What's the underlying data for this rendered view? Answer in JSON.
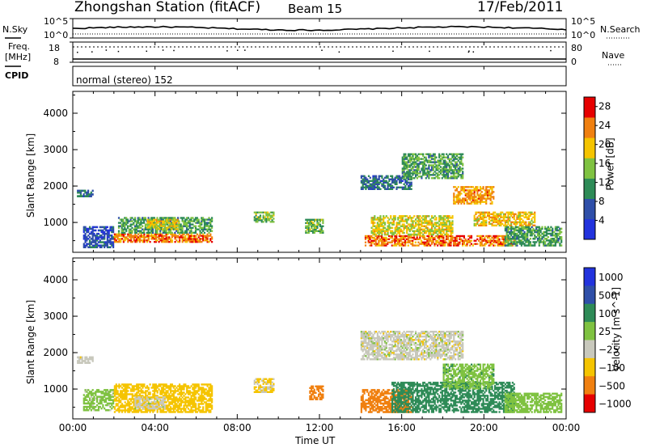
{
  "header": {
    "station": "Zhongshan Station (fitACF)",
    "beam": "Beam 15",
    "date": "17/Feb/2011"
  },
  "status_panels": {
    "nsky_label": "N.Sky",
    "nsky_ticks": [
      "10^5",
      "10^0"
    ],
    "nsearch_label": "N.Search",
    "nsearch_ticks": [
      "10^5",
      "10^0"
    ],
    "freq_label": "Freq.",
    "freq_unit": "[MHz]",
    "freq_ticks": [
      "18",
      "8"
    ],
    "nave_label": "Nave",
    "nave_ticks": [
      "80",
      "0"
    ],
    "cpid_label": "CPID",
    "cpid_text": "normal (stereo) 152"
  },
  "chart_data": [
    {
      "type": "heatmap",
      "panel": "power",
      "title": "",
      "xlabel": "Time UT",
      "ylabel": "Slant Range [km]",
      "x_ticks": [
        "00:00",
        "04:00",
        "08:00",
        "12:00",
        "16:00",
        "20:00",
        "00:00"
      ],
      "y_ticks": [
        1000,
        2000,
        3000,
        4000
      ],
      "xlim_hours": [
        0,
        24
      ],
      "ylim": [
        180,
        4600
      ],
      "colorbar": {
        "label": "Power [dB]",
        "ticks": [
          4,
          8,
          12,
          16,
          20,
          24,
          28
        ],
        "range": [
          0,
          30
        ],
        "colors": [
          "#2233dd",
          "#2f4fa8",
          "#2e8b57",
          "#7fc241",
          "#f5c400",
          "#f08010",
          "#e60000"
        ]
      },
      "regions": [
        {
          "t0": 0.2,
          "t1": 1.0,
          "r0": 1700,
          "r1": 1900,
          "value": 8
        },
        {
          "t0": 0.5,
          "t1": 2.0,
          "r0": 300,
          "r1": 900,
          "value": 6
        },
        {
          "t0": 2.0,
          "t1": 6.8,
          "r0": 450,
          "r1": 700,
          "value": 24
        },
        {
          "t0": 2.2,
          "t1": 6.8,
          "r0": 700,
          "r1": 1150,
          "value": 12
        },
        {
          "t0": 3.6,
          "t1": 5.2,
          "r0": 800,
          "r1": 1100,
          "value": 18
        },
        {
          "t0": 8.8,
          "t1": 9.8,
          "r0": 1000,
          "r1": 1300,
          "value": 14
        },
        {
          "t0": 11.3,
          "t1": 12.2,
          "r0": 700,
          "r1": 1100,
          "value": 14
        },
        {
          "t0": 14.2,
          "t1": 21.5,
          "r0": 350,
          "r1": 650,
          "value": 24
        },
        {
          "t0": 14.5,
          "t1": 18.5,
          "r0": 650,
          "r1": 1200,
          "value": 18
        },
        {
          "t0": 14.0,
          "t1": 16.5,
          "r0": 1900,
          "r1": 2300,
          "value": 8
        },
        {
          "t0": 16.0,
          "t1": 19.0,
          "r0": 2200,
          "r1": 2900,
          "value": 12
        },
        {
          "t0": 18.5,
          "t1": 20.5,
          "r0": 1500,
          "r1": 2000,
          "value": 22
        },
        {
          "t0": 19.5,
          "t1": 22.5,
          "r0": 900,
          "r1": 1300,
          "value": 20
        },
        {
          "t0": 21.0,
          "t1": 23.8,
          "r0": 350,
          "r1": 900,
          "value": 12
        }
      ]
    },
    {
      "type": "heatmap",
      "panel": "velocity",
      "title": "",
      "xlabel": "Time UT",
      "ylabel": "Slant Range [km]",
      "x_ticks": [
        "00:00",
        "04:00",
        "08:00",
        "12:00",
        "16:00",
        "20:00",
        "00:00"
      ],
      "y_ticks": [
        1000,
        2000,
        3000,
        4000
      ],
      "xlim_hours": [
        0,
        24
      ],
      "ylim": [
        180,
        4600
      ],
      "colorbar": {
        "label": "Velocity [m s^-1]",
        "tick_labels": [
          "1000",
          "500",
          "100",
          "25",
          "−25",
          "−100",
          "−500",
          "−1000"
        ],
        "colors": [
          "#2233dd",
          "#2f4fa8",
          "#2e8b57",
          "#7fc241",
          "#c8c8bc",
          "#f5c400",
          "#f08010",
          "#e60000"
        ]
      },
      "regions": [
        {
          "t0": 0.2,
          "t1": 1.0,
          "r0": 1700,
          "r1": 1900,
          "value": 0
        },
        {
          "t0": 0.5,
          "t1": 2.0,
          "r0": 400,
          "r1": 1000,
          "value": 50
        },
        {
          "t0": 2.0,
          "t1": 6.8,
          "r0": 350,
          "r1": 1150,
          "value": -60
        },
        {
          "t0": 3.0,
          "t1": 4.5,
          "r0": 450,
          "r1": 800,
          "value": 0
        },
        {
          "t0": 8.8,
          "t1": 9.8,
          "r0": 900,
          "r1": 1300,
          "value": -40
        },
        {
          "t0": 11.5,
          "t1": 12.2,
          "r0": 700,
          "r1": 1100,
          "value": -200
        },
        {
          "t0": 14.0,
          "t1": 16.5,
          "r0": 350,
          "r1": 1000,
          "value": -200
        },
        {
          "t0": 15.5,
          "t1": 21.5,
          "r0": 350,
          "r1": 1200,
          "value": 300
        },
        {
          "t0": 14.0,
          "t1": 19.0,
          "r0": 1800,
          "r1": 2600,
          "value": 0
        },
        {
          "t0": 18.0,
          "t1": 20.5,
          "r0": 1000,
          "r1": 1700,
          "value": 80
        },
        {
          "t0": 21.0,
          "t1": 23.8,
          "r0": 350,
          "r1": 900,
          "value": 60
        }
      ]
    }
  ]
}
